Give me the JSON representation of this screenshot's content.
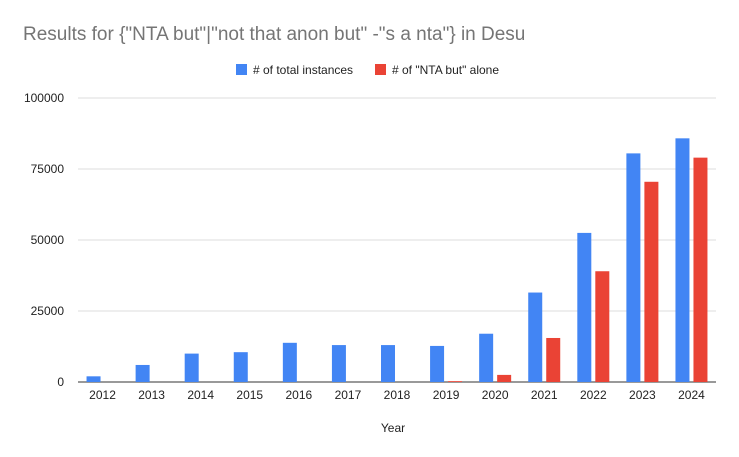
{
  "chart_data": {
    "type": "bar",
    "title": "Results for {\"NTA but\"|\"not that anon but\" -\"s a nta\"} in Desu",
    "xlabel": "Year",
    "ylabel": "",
    "ylim": [
      0,
      100000
    ],
    "yticks": [
      "0",
      "25000",
      "50000",
      "75000",
      "100000"
    ],
    "ytick_values": [
      0,
      25000,
      50000,
      75000,
      100000
    ],
    "grid": true,
    "legend_position": "top-center",
    "categories": [
      "2012",
      "2013",
      "2014",
      "2015",
      "2016",
      "2017",
      "2018",
      "2019",
      "2020",
      "2021",
      "2022",
      "2023",
      "2024"
    ],
    "series": [
      {
        "name": "# of total instances",
        "color": "#4285f4",
        "values": [
          2000,
          6000,
          10000,
          10500,
          13800,
          13000,
          13000,
          12700,
          17000,
          31500,
          52500,
          80500,
          85800
        ]
      },
      {
        "name": "# of \"NTA but\" alone",
        "color": "#ea4335",
        "values": [
          0,
          0,
          0,
          0,
          0,
          0,
          0,
          300,
          2500,
          15500,
          39000,
          70500,
          79000
        ]
      }
    ]
  }
}
